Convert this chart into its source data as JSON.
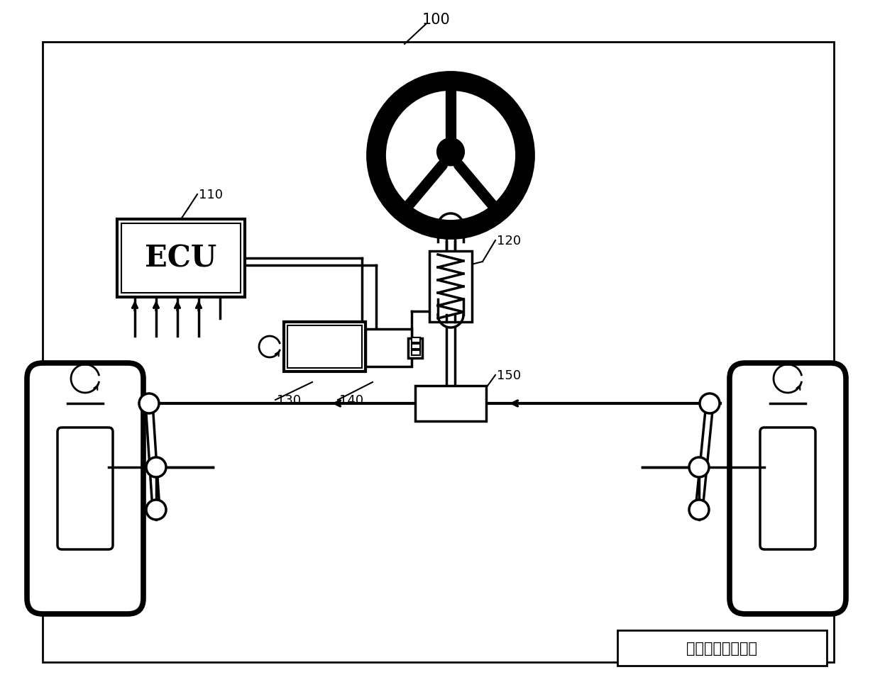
{
  "title_ref": "100",
  "label_110": "110",
  "label_120": "120",
  "label_130": "130",
  "label_140": "140",
  "label_150": "150",
  "ecu_text": "ECU",
  "caption": "电动助力转向系统",
  "bg_color": "#ffffff",
  "line_color": "#000000",
  "lw_thick": 4.0,
  "lw_med": 2.5,
  "lw_thin": 1.5
}
